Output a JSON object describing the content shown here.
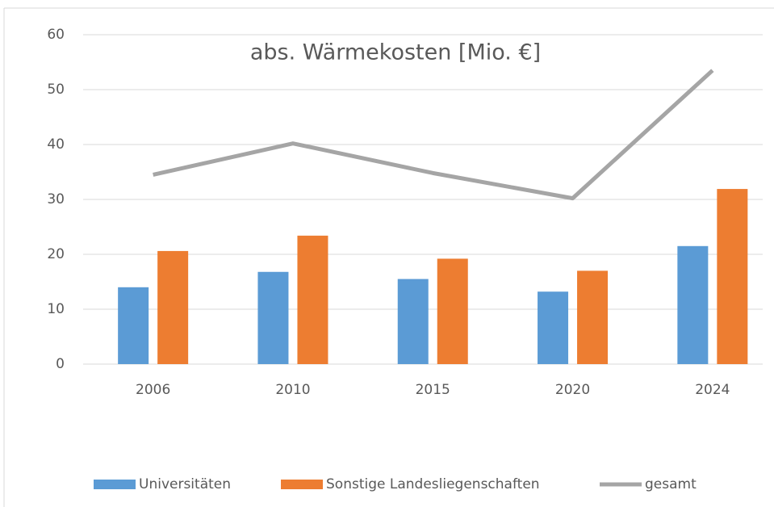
{
  "chart_data": {
    "type": "bar",
    "title": "abs. Wärmekosten [Mio. €]",
    "categories": [
      "2006",
      "2010",
      "2015",
      "2020",
      "2024"
    ],
    "series": [
      {
        "name": "Universitäten",
        "color": "#5b9bd5",
        "values": [
          14,
          16.8,
          15.5,
          13.2,
          21.5
        ]
      },
      {
        "name": "Sonstige Landesliegenschaften",
        "color": "#ed7d31",
        "values": [
          20.6,
          23.4,
          19.2,
          17,
          31.9
        ]
      },
      {
        "name": "gesamt",
        "color": "#a5a5a5",
        "type": "line",
        "values": [
          34.5,
          40.2,
          34.8,
          30.2,
          53.5
        ]
      }
    ],
    "ylim": [
      0,
      60
    ],
    "yticks": [
      0,
      10,
      20,
      30,
      40,
      50,
      60
    ],
    "grid": true,
    "legend": "bottom"
  }
}
